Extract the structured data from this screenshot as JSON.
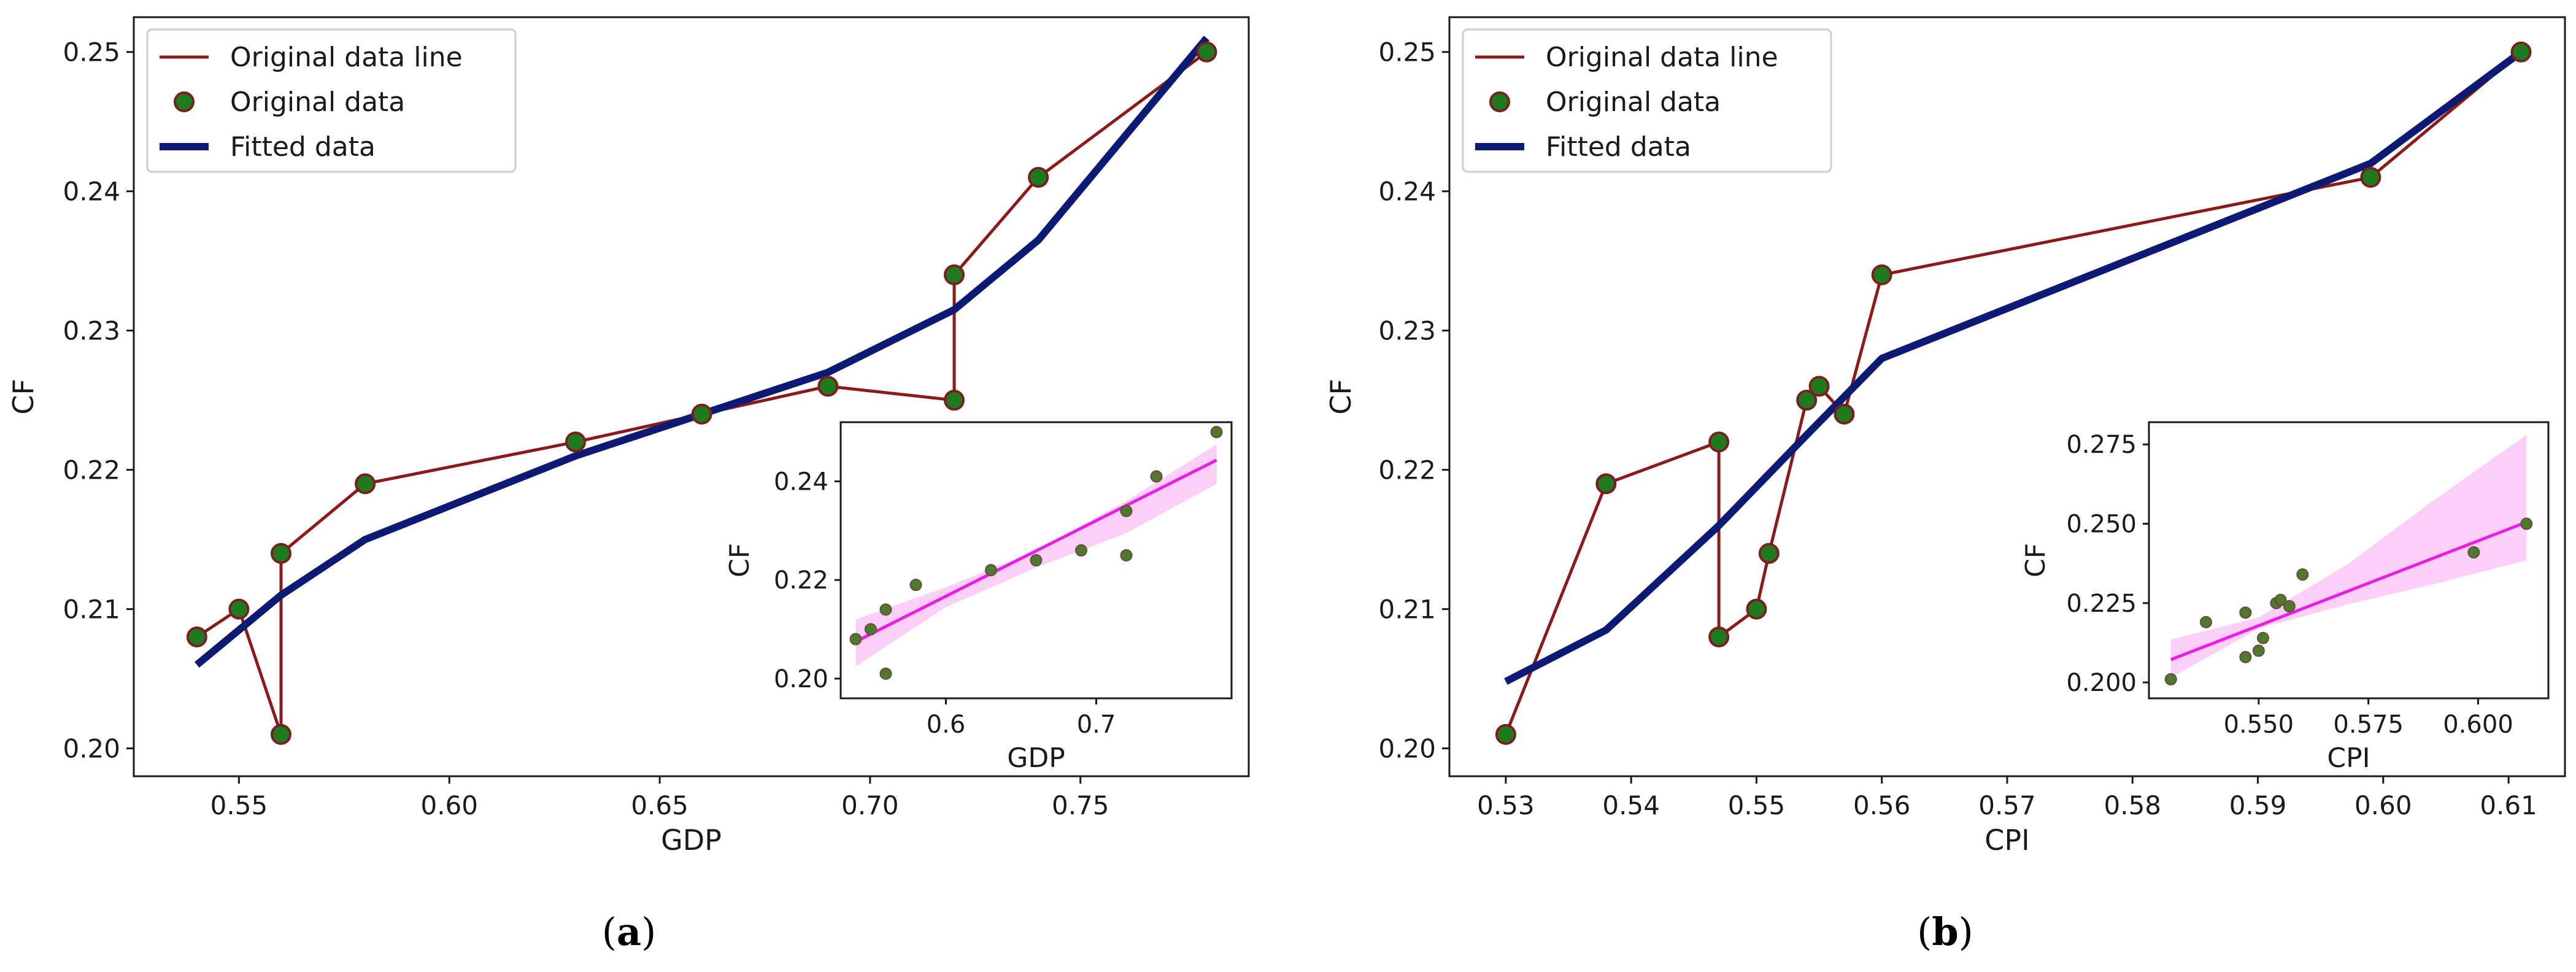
{
  "chart_data": [
    {
      "id": "a",
      "caption_open": "(",
      "caption_letter": "a",
      "caption_close": ")",
      "xlabel": "GDP",
      "ylabel": "CF",
      "xlim": [
        0.525,
        0.79
      ],
      "ylim": [
        0.198,
        0.2525
      ],
      "xticks": [
        "0.55",
        "0.60",
        "0.65",
        "0.70",
        "0.75"
      ],
      "yticks": [
        "0.20",
        "0.21",
        "0.22",
        "0.23",
        "0.24",
        "0.25"
      ],
      "legend": [
        "Original data line",
        "Original data",
        "Fitted data"
      ],
      "legend_position": "top-left",
      "original": [
        [
          0.54,
          0.208
        ],
        [
          0.55,
          0.21
        ],
        [
          0.56,
          0.201
        ],
        [
          0.56,
          0.214
        ],
        [
          0.58,
          0.219
        ],
        [
          0.63,
          0.222
        ],
        [
          0.66,
          0.224
        ],
        [
          0.69,
          0.226
        ],
        [
          0.72,
          0.225
        ],
        [
          0.72,
          0.234
        ],
        [
          0.74,
          0.241
        ],
        [
          0.78,
          0.25
        ]
      ],
      "fitted": [
        [
          0.54,
          0.206
        ],
        [
          0.56,
          0.211
        ],
        [
          0.58,
          0.215
        ],
        [
          0.63,
          0.221
        ],
        [
          0.66,
          0.224
        ],
        [
          0.69,
          0.227
        ],
        [
          0.72,
          0.2315
        ],
        [
          0.74,
          0.2365
        ],
        [
          0.78,
          0.251
        ]
      ],
      "inset": {
        "position": "bottom-right",
        "xlabel": "GDP",
        "ylabel": "CF",
        "xlim": [
          0.53,
          0.79
        ],
        "ylim": [
          0.196,
          0.252
        ],
        "xticks": [
          "0.6",
          "0.7"
        ],
        "yticks": [
          "0.20",
          "0.22",
          "0.24"
        ],
        "scatter": [
          [
            0.54,
            0.208
          ],
          [
            0.55,
            0.21
          ],
          [
            0.56,
            0.214
          ],
          [
            0.56,
            0.201
          ],
          [
            0.58,
            0.219
          ],
          [
            0.63,
            0.222
          ],
          [
            0.66,
            0.224
          ],
          [
            0.69,
            0.226
          ],
          [
            0.72,
            0.225
          ],
          [
            0.72,
            0.234
          ],
          [
            0.74,
            0.241
          ],
          [
            0.78,
            0.25
          ]
        ],
        "reg_line": [
          [
            0.54,
            0.2075
          ],
          [
            0.78,
            0.2443
          ]
        ],
        "ci_upper": [
          [
            0.54,
            0.212
          ],
          [
            0.6,
            0.2185
          ],
          [
            0.66,
            0.226
          ],
          [
            0.72,
            0.236
          ],
          [
            0.78,
            0.2475
          ]
        ],
        "ci_lower": [
          [
            0.54,
            0.2025
          ],
          [
            0.6,
            0.2145
          ],
          [
            0.66,
            0.2225
          ],
          [
            0.72,
            0.2295
          ],
          [
            0.78,
            0.2395
          ]
        ]
      }
    },
    {
      "id": "b",
      "caption_open": "(",
      "caption_letter": "b",
      "caption_close": ")",
      "xlabel": "CPI",
      "ylabel": "CF",
      "xlim": [
        0.5255,
        0.6145
      ],
      "ylim": [
        0.198,
        0.2525
      ],
      "xticks": [
        "0.53",
        "0.54",
        "0.55",
        "0.56",
        "0.57",
        "0.58",
        "0.59",
        "0.60",
        "0.61"
      ],
      "yticks": [
        "0.20",
        "0.21",
        "0.22",
        "0.23",
        "0.24",
        "0.25"
      ],
      "legend": [
        "Original data line",
        "Original data",
        "Fitted data"
      ],
      "legend_position": "top-left",
      "original": [
        [
          0.53,
          0.201
        ],
        [
          0.538,
          0.219
        ],
        [
          0.547,
          0.222
        ],
        [
          0.547,
          0.208
        ],
        [
          0.55,
          0.21
        ],
        [
          0.551,
          0.214
        ],
        [
          0.554,
          0.225
        ],
        [
          0.555,
          0.226
        ],
        [
          0.557,
          0.224
        ],
        [
          0.56,
          0.234
        ],
        [
          0.599,
          0.241
        ],
        [
          0.611,
          0.25
        ]
      ],
      "fitted": [
        [
          0.53,
          0.2048
        ],
        [
          0.538,
          0.2085
        ],
        [
          0.547,
          0.216
        ],
        [
          0.554,
          0.2225
        ],
        [
          0.56,
          0.228
        ],
        [
          0.599,
          0.242
        ],
        [
          0.611,
          0.25
        ]
      ],
      "inset": {
        "position": "bottom-right",
        "xlabel": "CPI",
        "ylabel": "CF",
        "xlim": [
          0.525,
          0.616
        ],
        "ylim": [
          0.195,
          0.282
        ],
        "xticks": [
          "0.550",
          "0.575",
          "0.600"
        ],
        "yticks": [
          "0.200",
          "0.225",
          "0.250",
          "0.275"
        ],
        "scatter": [
          [
            0.53,
            0.201
          ],
          [
            0.538,
            0.219
          ],
          [
            0.547,
            0.208
          ],
          [
            0.547,
            0.222
          ],
          [
            0.55,
            0.21
          ],
          [
            0.551,
            0.214
          ],
          [
            0.554,
            0.225
          ],
          [
            0.555,
            0.226
          ],
          [
            0.557,
            0.224
          ],
          [
            0.56,
            0.234
          ],
          [
            0.599,
            0.241
          ],
          [
            0.611,
            0.25
          ]
        ],
        "reg_line": [
          [
            0.53,
            0.2072
          ],
          [
            0.611,
            0.2505
          ]
        ],
        "ci_upper": [
          [
            0.53,
            0.2135
          ],
          [
            0.55,
            0.2205
          ],
          [
            0.57,
            0.237
          ],
          [
            0.59,
            0.2575
          ],
          [
            0.611,
            0.278
          ]
        ],
        "ci_lower": [
          [
            0.53,
            0.2015
          ],
          [
            0.55,
            0.217
          ],
          [
            0.57,
            0.2245
          ],
          [
            0.59,
            0.231
          ],
          [
            0.611,
            0.2385
          ]
        ]
      }
    }
  ],
  "colors": {
    "data_line": "#8b1a1a",
    "marker_fill": "#1f7a1f",
    "marker_edge": "#7a1f1f",
    "fitted": "#0d1a73",
    "reg_line": "#e81ee6",
    "ci_fill": "#fbc7f4",
    "inset_point": "#4f7a2e"
  }
}
